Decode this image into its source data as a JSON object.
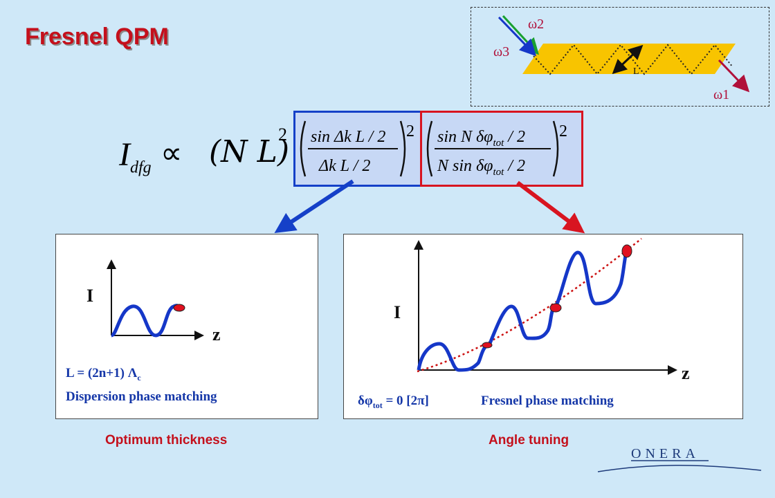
{
  "slide": {
    "title": "Fresnel QPM"
  },
  "inset": {
    "omega2": "ω2",
    "omega3": "ω3",
    "omega1": "ω1",
    "length_label": "L"
  },
  "formula": {
    "lhs": "I",
    "lhs_sub": "dfg",
    "prop": "∝",
    "nl_term": "(N L)",
    "exp": "2",
    "term1_num": "sin Δk L / 2",
    "term1_den": "Δk L / 2",
    "term2_num": "sin N δφ",
    "term2_num_sub": "tot",
    "term2_num_tail": " / 2",
    "term2_den": "N sin δφ",
    "term2_den_sub": "tot",
    "term2_den_tail": " / 2"
  },
  "left_panel": {
    "y_label": "I",
    "x_label": "z",
    "line1_prefix": "L = (2n+1) Λ",
    "line1_sub": "c",
    "line2": "Dispersion phase matching",
    "caption": "Optimum thickness"
  },
  "right_panel": {
    "y_label": "I",
    "x_label": "z",
    "condition_prefix": "δφ",
    "condition_sub": "tot",
    "condition_tail": " = 0 [2π]",
    "condition_label": "Fresnel phase matching",
    "caption": "Angle tuning"
  },
  "logo": {
    "text": "ONERA"
  },
  "colors": {
    "title_red": "#c4101c",
    "curve_blue": "#1537c8",
    "marker_red": "#e01020",
    "crystal_yellow": "#f8c400",
    "background": "#cfe8f8"
  }
}
